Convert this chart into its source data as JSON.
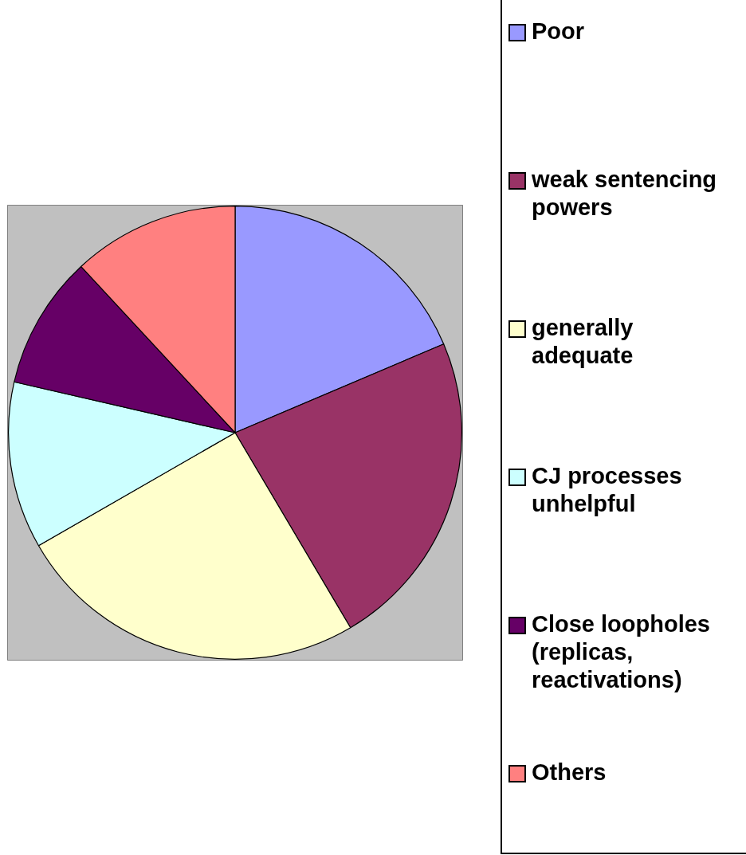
{
  "chart_data": {
    "type": "pie",
    "categories": [
      "Poor",
      "weak sentencing powers",
      "generally adequate",
      "CJ processes unhelpful",
      "Close loopholes (replicas, reactivations)",
      "Others"
    ],
    "values": [
      18.6,
      22.9,
      25.2,
      11.9,
      9.5,
      11.9
    ],
    "colors": [
      "#9999ff",
      "#993366",
      "#ffffcc",
      "#ccffff",
      "#660066",
      "#ff8080"
    ],
    "legend": "right"
  }
}
